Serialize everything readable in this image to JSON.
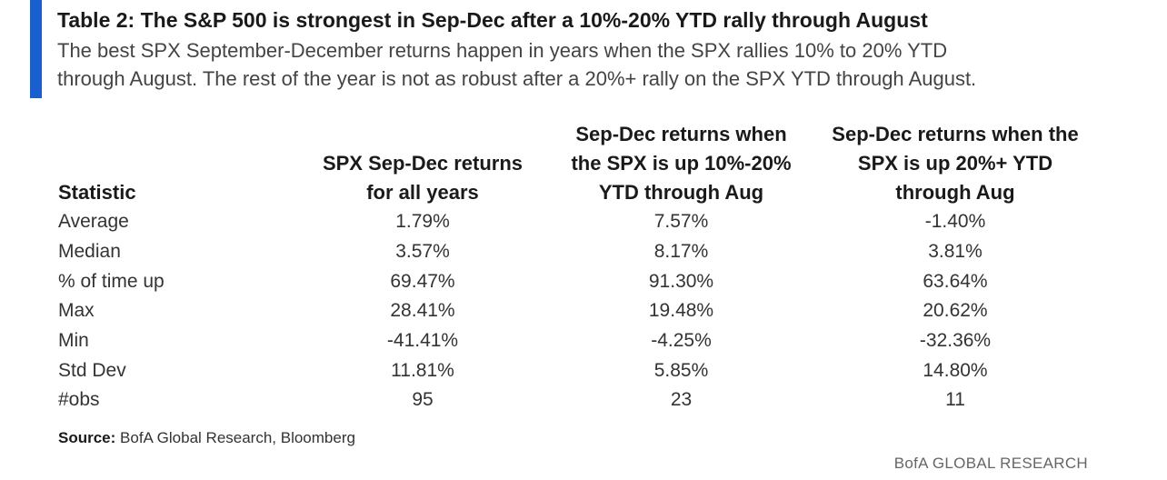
{
  "header": {
    "title": "Table 2: The S&P 500 is strongest in Sep-Dec after a 10%-20% YTD rally through August",
    "subtitle_lines": [
      "The best SPX September-December returns happen in years when the SPX rallies 10% to 20% YTD",
      "through August. The rest of the year is not as robust after a 20%+ rally on the SPX YTD through August."
    ],
    "accent_color": "#1a5fd0"
  },
  "table": {
    "columns": [
      "Statistic",
      "SPX Sep-Dec returns for all years",
      "Sep-Dec returns when the SPX is up 10%-20% YTD through Aug",
      "Sep-Dec returns when the SPX is up 20%+ YTD through Aug"
    ],
    "column_lines": [
      [
        "Statistic"
      ],
      [
        "SPX Sep-Dec returns",
        "for all years"
      ],
      [
        "Sep-Dec returns when",
        "the SPX is up 10%-20%",
        "YTD through Aug"
      ],
      [
        "Sep-Dec returns when the",
        "SPX is up 20%+ YTD",
        "through Aug"
      ]
    ],
    "rows": [
      [
        "Average",
        "1.79%",
        "7.57%",
        "-1.40%"
      ],
      [
        "Median",
        "3.57%",
        "8.17%",
        "3.81%"
      ],
      [
        "% of time up",
        "69.47%",
        "91.30%",
        "63.64%"
      ],
      [
        "Max",
        "28.41%",
        "19.48%",
        "20.62%"
      ],
      [
        "Min",
        "-41.41%",
        "-4.25%",
        "-32.36%"
      ],
      [
        "Std Dev",
        "11.81%",
        "5.85%",
        "14.80%"
      ],
      [
        "#obs",
        "95",
        "23",
        "11"
      ]
    ]
  },
  "source": {
    "label": "Source:",
    "text": "BofA Global Research, Bloomberg"
  },
  "brand": "BofA GLOBAL RESEARCH"
}
